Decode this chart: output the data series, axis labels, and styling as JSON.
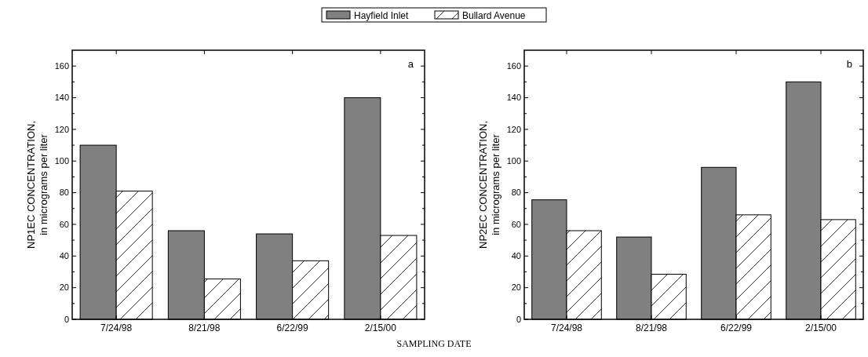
{
  "chart_data": [
    {
      "type": "bar",
      "ylabel": "NP1EC CONCENTRATION,\nin micrograms per liter",
      "xlabel": "SAMPLING DATE",
      "categories": [
        "7/24/98",
        "8/21/98",
        "6/22/99",
        "2/15/00"
      ],
      "ylim": [
        0,
        170
      ],
      "yticks": [
        {
          "value": 0,
          "label": "0"
        },
        {
          "value": 10,
          "label": null
        },
        {
          "value": 20,
          "label": "20"
        },
        {
          "value": 30,
          "label": null
        },
        {
          "value": 40,
          "label": "40"
        },
        {
          "value": 50,
          "label": null
        },
        {
          "value": 60,
          "label": "60"
        },
        {
          "value": 70,
          "label": null
        },
        {
          "value": 80,
          "label": "80"
        },
        {
          "value": 90,
          "label": null
        },
        {
          "value": 100,
          "label": "100"
        },
        {
          "value": 110,
          "label": null
        },
        {
          "value": 120,
          "label": "120"
        },
        {
          "value": 130,
          "label": null
        },
        {
          "value": 140,
          "label": "140"
        },
        {
          "value": 150,
          "label": null
        },
        {
          "value": 160,
          "label": "160"
        }
      ],
      "legend": "top",
      "annotations": [
        "a"
      ],
      "series": [
        {
          "name": "Hayfield Inlet",
          "color": "#808080",
          "values": [
            110,
            56,
            54,
            140
          ]
        },
        {
          "name": "Bullard Avenue",
          "color": "#000000",
          "values": [
            81,
            25.5,
            37,
            53
          ]
        }
      ]
    },
    {
      "type": "bar",
      "ylabel": "NP2EC CONCENTRATION,\nin micrograms per liter",
      "categories": [
        "7/24/98",
        "8/21/98",
        "6/22/99",
        "2/15/00"
      ],
      "ylim": [
        0,
        170
      ],
      "yticks": [
        {
          "value": 0,
          "label": "0"
        },
        {
          "value": 10,
          "label": null
        },
        {
          "value": 20,
          "label": "20"
        },
        {
          "value": 30,
          "label": null
        },
        {
          "value": 40,
          "label": "40"
        },
        {
          "value": 50,
          "label": null
        },
        {
          "value": 60,
          "label": "60"
        },
        {
          "value": 70,
          "label": null
        },
        {
          "value": 80,
          "label": "80"
        },
        {
          "value": 90,
          "label": null
        },
        {
          "value": 100,
          "label": "100"
        },
        {
          "value": 110,
          "label": null
        },
        {
          "value": 120,
          "label": "120"
        },
        {
          "value": 130,
          "label": null
        },
        {
          "value": 140,
          "label": "140"
        },
        {
          "value": 150,
          "label": null
        },
        {
          "value": 160,
          "label": "160"
        }
      ],
      "annotations": [
        "b"
      ],
      "series": [
        {
          "color": "#808080",
          "values": [
            75.5,
            52,
            96,
            150
          ]
        },
        {
          "color": "#000000",
          "values": [
            56,
            28.5,
            66,
            63
          ]
        }
      ]
    }
  ]
}
